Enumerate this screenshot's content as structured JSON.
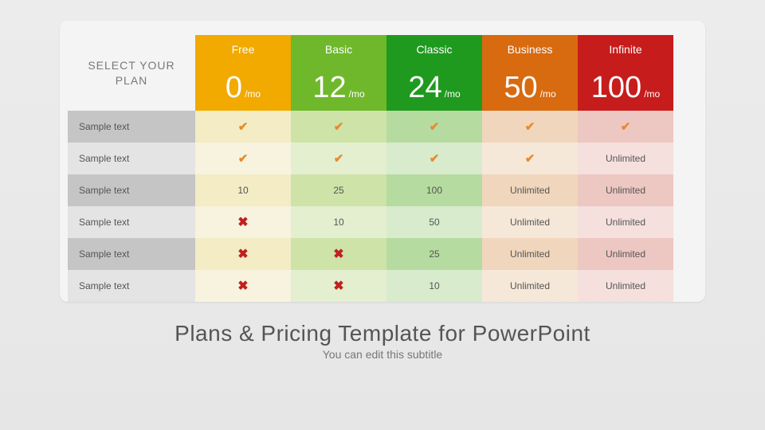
{
  "title": "Plans & Pricing Template for PowerPoint",
  "subtitle": "You can edit this subtitle",
  "selector_label": "SELECT YOUR PLAN",
  "icons": {
    "check": "✔",
    "cross": "✖"
  },
  "plans": [
    {
      "name": "Free",
      "price": "0",
      "unit": "/mo",
      "header_color": "#f2a900",
      "tint_dark": "#f3ecc4",
      "tint_light": "#f8f3de"
    },
    {
      "name": "Basic",
      "price": "12",
      "unit": "/mo",
      "header_color": "#6fb82b",
      "tint_dark": "#cde3a8",
      "tint_light": "#e4efcf"
    },
    {
      "name": "Classic",
      "price": "24",
      "unit": "/mo",
      "header_color": "#1f9a1f",
      "tint_dark": "#b6dba0",
      "tint_light": "#d8ebcd"
    },
    {
      "name": "Business",
      "price": "50",
      "unit": "/mo",
      "header_color": "#d86a10",
      "tint_dark": "#f0d6bc",
      "tint_light": "#f6e8d9"
    },
    {
      "name": "Infinite",
      "price": "100",
      "unit": "/mo",
      "header_color": "#c71c1c",
      "tint_dark": "#edc7c2",
      "tint_light": "#f5e0de"
    }
  ],
  "row_labels": [
    "Sample text",
    "Sample text",
    "Sample text",
    "Sample text",
    "Sample text",
    "Sample text"
  ],
  "row_label_colors": {
    "dark": "#c5c5c5",
    "light": "#e4e4e4"
  },
  "features": [
    [
      {
        "type": "check"
      },
      {
        "type": "check"
      },
      {
        "type": "check"
      },
      {
        "type": "check"
      },
      {
        "type": "check"
      }
    ],
    [
      {
        "type": "check"
      },
      {
        "type": "check"
      },
      {
        "type": "check"
      },
      {
        "type": "check"
      },
      {
        "type": "text",
        "value": "Unlimited"
      }
    ],
    [
      {
        "type": "text",
        "value": "10"
      },
      {
        "type": "text",
        "value": "25"
      },
      {
        "type": "text",
        "value": "100"
      },
      {
        "type": "text",
        "value": "Unlimited"
      },
      {
        "type": "text",
        "value": "Unlimited"
      }
    ],
    [
      {
        "type": "cross"
      },
      {
        "type": "text",
        "value": "10"
      },
      {
        "type": "text",
        "value": "50"
      },
      {
        "type": "text",
        "value": "Unlimited"
      },
      {
        "type": "text",
        "value": "Unlimited"
      }
    ],
    [
      {
        "type": "cross"
      },
      {
        "type": "cross"
      },
      {
        "type": "text",
        "value": "25"
      },
      {
        "type": "text",
        "value": "Unlimited"
      },
      {
        "type": "text",
        "value": "Unlimited"
      }
    ],
    [
      {
        "type": "cross"
      },
      {
        "type": "cross"
      },
      {
        "type": "text",
        "value": "10"
      },
      {
        "type": "text",
        "value": "Unlimited"
      },
      {
        "type": "text",
        "value": "Unlimited"
      }
    ]
  ]
}
